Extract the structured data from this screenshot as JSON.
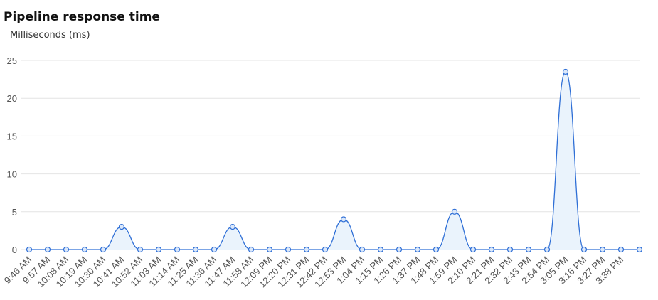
{
  "chart_data": {
    "type": "line",
    "title": "Pipeline response time",
    "subtitle": "Milliseconds (ms)",
    "categories": [
      "9:46 AM",
      "9:57 AM",
      "10:08 AM",
      "10:19 AM",
      "10:30 AM",
      "10:41 AM",
      "10:52 AM",
      "11:03 AM",
      "11:14 AM",
      "11:25 AM",
      "11:36 AM",
      "11:47 AM",
      "11:58 AM",
      "12:09 PM",
      "12:20 PM",
      "12:31 PM",
      "12:42 PM",
      "12:53 PM",
      "1:04 PM",
      "1:15 PM",
      "1:26 PM",
      "1:37 PM",
      "1:48 PM",
      "1:59 PM",
      "2:10 PM",
      "2:21 PM",
      "2:32 PM",
      "2:43 PM",
      "2:54 PM",
      "3:05 PM",
      "3:16 PM",
      "3:27 PM",
      "3:38 PM",
      null
    ],
    "values": [
      0,
      0,
      0,
      0,
      0,
      3,
      0,
      0,
      0,
      0,
      0,
      3,
      0,
      0,
      0,
      0,
      0,
      4,
      0,
      0,
      0,
      0,
      0,
      5,
      0,
      0,
      0,
      0,
      0,
      23.5,
      0,
      0,
      0,
      0
    ],
    "color": "#2f6fd6",
    "fill": "#eaf3fc",
    "ylim": [
      0,
      25
    ],
    "yticks": [
      0,
      5,
      10,
      15,
      20,
      25
    ],
    "grid": true
  }
}
